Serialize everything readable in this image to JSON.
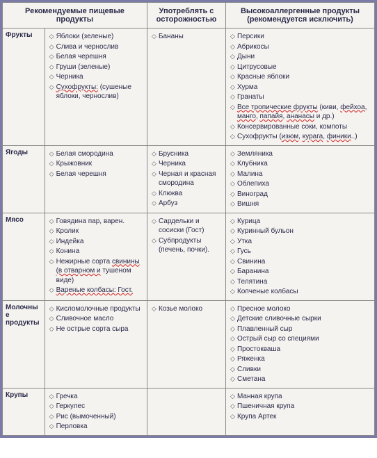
{
  "headers": {
    "h1": "Рекомендуемые пищевые продукты",
    "h2": "Употреблять с осторожностью",
    "h3": "Высокоаллергенные продукты (рекомендуется исключить)"
  },
  "col_widths": [
    "60px",
    "146px",
    "112px",
    "212px"
  ],
  "rows": [
    {
      "label": "Фрукты",
      "c1": [
        {
          "t": "Яблоки (зеленые)"
        },
        {
          "t": "Слива и чернослив"
        },
        {
          "t": "Белая черешня"
        },
        {
          "t": "Груши (зеленые)"
        },
        {
          "t": "Черника"
        },
        {
          "t": "Сухофрукты: (сушеные   яблоки, чернослив)",
          "sq": [
            "Сухофрукты:"
          ]
        }
      ],
      "c2": [
        {
          "t": "Бананы"
        }
      ],
      "c3": [
        {
          "t": "Персики"
        },
        {
          "t": "Абрикосы"
        },
        {
          "t": "Дыни"
        },
        {
          "t": "Цитрусовые"
        },
        {
          "t": "Красные яблоки"
        },
        {
          "t": "Хурма"
        },
        {
          "t": "Гранаты"
        },
        {
          "t": "Все тропические фрукты (киви, фейхоа, манго, папайя, ананасы и др.)",
          "sq": [
            "Все тропические фрукты",
            "фейхоа",
            "манго",
            "папайя",
            "ананасы"
          ]
        },
        {
          "t": "Консервированные соки, компоты"
        },
        {
          "t": "Сухофрукты (изюм, курага, финики..)",
          "sq": [
            "изюм",
            "курага",
            "финики"
          ]
        }
      ]
    },
    {
      "label": "Ягоды",
      "c1": [
        {
          "t": "Белая смородина"
        },
        {
          "t": "Крыжовник"
        },
        {
          "t": "Белая черешня"
        }
      ],
      "c2": [
        {
          "t": "Брусника"
        },
        {
          "t": "Черника"
        },
        {
          "t": "Черная и красная смородина"
        },
        {
          "t": "Клюква"
        },
        {
          "t": "Арбуз"
        }
      ],
      "c3": [
        {
          "t": "Земляника"
        },
        {
          "t": "Клубника"
        },
        {
          "t": "Малина"
        },
        {
          "t": "Облепиха"
        },
        {
          "t": "Виноград"
        },
        {
          "t": "Вишня"
        }
      ]
    },
    {
      "label": "Мясо",
      "c1": [
        {
          "t": "Говядина пар, варен."
        },
        {
          "t": "Кролик"
        },
        {
          "t": "Индейка"
        },
        {
          "t": "Конина"
        },
        {
          "t": "Нежирные сорта свинины (в отварном и тушеном виде)",
          "sq": [
            "свинины (в отварном и"
          ]
        },
        {
          "t": "Вареные колбасы: Гост.",
          "sq": [
            "Вареные колбасы: Гост."
          ]
        }
      ],
      "c2": [
        {
          "t": "Сардельки и сосиски (Гост)"
        },
        {
          "t": "Субпродукты (печень, почки)."
        }
      ],
      "c3": [
        {
          "t": "Курица"
        },
        {
          "t": "Куринный бульон"
        },
        {
          "t": "Утка"
        },
        {
          "t": "Гусь"
        },
        {
          "t": "Свинина"
        },
        {
          "t": "Баранина"
        },
        {
          "t": "Телятина"
        },
        {
          "t": "Копченые колбасы"
        }
      ]
    },
    {
      "label": "Молочные продукты",
      "c1": [
        {
          "t": "Кисломолочные продукты"
        },
        {
          "t": "Сливочное масло"
        },
        {
          "t": "Не острые сорта сыра"
        }
      ],
      "c2": [
        {
          "t": "Козье молоко"
        }
      ],
      "c3": [
        {
          "t": "Пресное молоко"
        },
        {
          "t": "Детские сливочные сырки"
        },
        {
          "t": "Плавленный сыр"
        },
        {
          "t": "Острый сыр со специями"
        },
        {
          "t": "Простокваша"
        },
        {
          "t": "Ряженка"
        },
        {
          "t": "Сливки"
        },
        {
          "t": "Сметана"
        }
      ]
    },
    {
      "label": "Крупы",
      "c1": [
        {
          "t": "Гречка"
        },
        {
          "t": "Геркулес"
        },
        {
          "t": "Рис (вымоченный)"
        },
        {
          "t": "Перловка"
        }
      ],
      "c2": [],
      "c3": [
        {
          "t": "Манная крупа"
        },
        {
          "t": "Пшеничная крупа"
        },
        {
          "t": "Крупа Артек"
        }
      ]
    }
  ]
}
